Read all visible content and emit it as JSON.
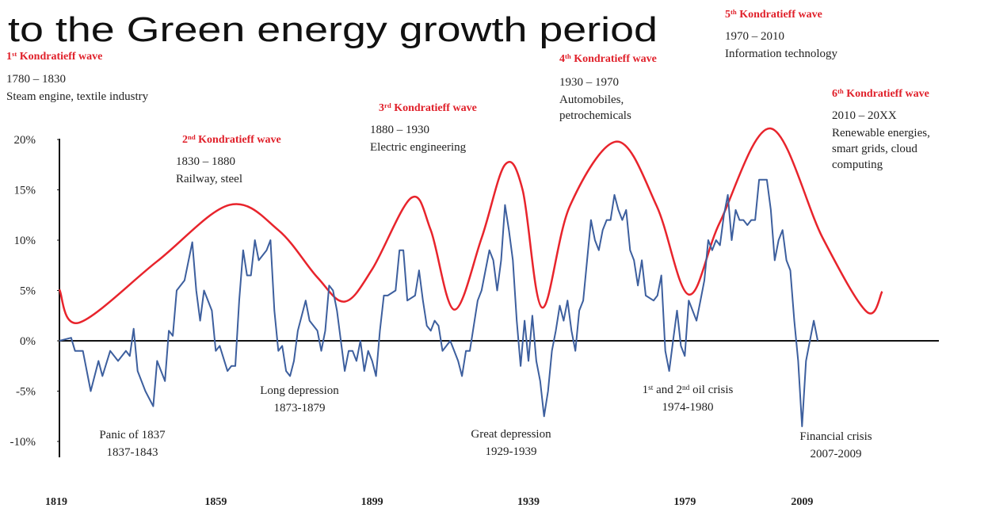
{
  "chart_data": {
    "type": "line",
    "title": "to the Green energy growth period",
    "xlim": [
      1819,
      2044
    ],
    "ylim": [
      -11,
      21.5
    ],
    "xticks": [
      1819,
      1859,
      1899,
      1939,
      1979,
      2009
    ],
    "yticks": [
      {
        "value": 20,
        "label": "20%"
      },
      {
        "value": 15,
        "label": "15%"
      },
      {
        "value": 10,
        "label": "10%"
      },
      {
        "value": 5,
        "label": "5%"
      },
      {
        "value": 0,
        "label": "0%"
      },
      {
        "value": -5,
        "label": "-5%"
      },
      {
        "value": -10,
        "label": "-10%"
      }
    ],
    "grid": false,
    "series": [
      {
        "color": "#e8242c",
        "smooth": true,
        "x": [
          1819,
          1824,
          1844,
          1862.5,
          1875,
          1885,
          1892,
          1899,
          1909,
          1914,
          1920,
          1927,
          1933,
          1937.5,
          1942.5,
          1949.6,
          1961.7,
          1971.8,
          1980,
          1988,
          2001,
          2014.3,
          2025.5,
          2029.5
        ],
        "values": [
          5.1,
          1.8,
          7.9,
          13.5,
          11,
          6.3,
          3.9,
          7.1,
          14.2,
          11,
          3.1,
          10.2,
          17.5,
          15,
          3.3,
          13.4,
          19.8,
          13.4,
          4.6,
          11.8,
          21.1,
          10.2,
          2.9,
          4.9
        ]
      },
      {
        "color": "#3d5f9e",
        "smooth": false,
        "x": [
          1819,
          1822,
          1823,
          1825,
          1827,
          1829,
          1830,
          1832,
          1834,
          1836,
          1837,
          1838,
          1839,
          1841,
          1843,
          1844,
          1846,
          1847,
          1848,
          1849,
          1851,
          1853,
          1854,
          1855,
          1856,
          1858,
          1859,
          1860,
          1862,
          1863,
          1864,
          1865,
          1866,
          1867,
          1868,
          1869,
          1870,
          1872,
          1873,
          1874,
          1875,
          1876,
          1877,
          1878,
          1879,
          1880,
          1882,
          1883,
          1885,
          1886,
          1887,
          1888,
          1889,
          1890,
          1891,
          1892,
          1893,
          1894,
          1895,
          1896,
          1897,
          1898,
          1899,
          1900,
          1901,
          1902,
          1903,
          1905,
          1906,
          1907,
          1908,
          1910,
          1911,
          1912,
          1913,
          1914,
          1915,
          1916,
          1917,
          1918,
          1919,
          1920,
          1921,
          1922,
          1923,
          1924,
          1926,
          1927,
          1929,
          1930,
          1931,
          1932,
          1933,
          1934,
          1935,
          1936,
          1937,
          1938,
          1939,
          1940,
          1941,
          1942,
          1943,
          1944,
          1945,
          1946,
          1947,
          1948,
          1949,
          1950,
          1951,
          1952,
          1953,
          1954,
          1955,
          1956,
          1957,
          1958,
          1959,
          1960,
          1961,
          1962,
          1963,
          1964,
          1965,
          1966,
          1967,
          1968,
          1969,
          1971,
          1972,
          1973,
          1974,
          1975,
          1976,
          1977,
          1978,
          1979,
          1980,
          1981,
          1982,
          1983,
          1984,
          1985,
          1986,
          1987,
          1988,
          1989,
          1990,
          1991,
          1992,
          1993,
          1994,
          1995,
          1996,
          1997,
          1998,
          1999,
          2000,
          2001,
          2002,
          2003,
          2004,
          2005,
          2006,
          2007,
          2008,
          2009,
          2010,
          2011,
          2012,
          2013
        ],
        "values": [
          0,
          0.3,
          -1,
          -1,
          -5,
          -2,
          -3.5,
          -1,
          -2,
          -1,
          -1.5,
          1.2,
          -3,
          -5,
          -6.5,
          -2,
          -4,
          1,
          0.5,
          5,
          6,
          9.8,
          5,
          2,
          5,
          3,
          -1,
          -0.5,
          -3,
          -2.5,
          -2.5,
          4,
          9,
          6.5,
          6.5,
          10,
          8,
          9,
          10,
          3,
          -1,
          -0.5,
          -3,
          -3.5,
          -2,
          1,
          4,
          2,
          1,
          -1,
          1,
          5.5,
          5,
          3,
          0,
          -3,
          -1,
          -1,
          -2,
          0,
          -3,
          -1,
          -2,
          -3.5,
          1,
          4.5,
          4.5,
          5,
          9,
          9,
          4,
          4.5,
          7,
          4,
          1.5,
          1,
          2,
          1.5,
          -1,
          -0.5,
          0,
          -1,
          -2,
          -3.5,
          -1,
          -1,
          4,
          5,
          9,
          8,
          5,
          8,
          13.5,
          11,
          8,
          2,
          -2.5,
          2,
          -2,
          2.5,
          -2,
          -4,
          -7.5,
          -5,
          -1,
          1,
          3.5,
          2,
          4,
          1,
          -1,
          3,
          4,
          8,
          12,
          10,
          9,
          11,
          12,
          12,
          14.5,
          13,
          12,
          13,
          9,
          8,
          5.5,
          8,
          4.5,
          4,
          4.5,
          6.5,
          -1,
          -3,
          0,
          3,
          -0.5,
          -1.5,
          4,
          3,
          2,
          4,
          6,
          10,
          9,
          10,
          9.5,
          12.5,
          14.5,
          10,
          13,
          12,
          12,
          11.5,
          12,
          12,
          16,
          16,
          16,
          13,
          8,
          10,
          11,
          8,
          7,
          2,
          -2,
          -8.5,
          -2,
          0,
          2,
          0
        ]
      }
    ],
    "waves": [
      {
        "heading": [
          {
            "text": "1"
          },
          {
            "text": "st",
            "sup": true
          },
          {
            "text": " Kondratieff wave"
          }
        ],
        "years": "1780 – 1830",
        "lines": [
          "Steam engine, textile industry"
        ]
      },
      {
        "heading": [
          {
            "text": "2"
          },
          {
            "text": "nd",
            "sup": true
          },
          {
            "text": " Kondratieff wave"
          }
        ],
        "years": "1830 – 1880",
        "lines": [
          "Railway, steel"
        ]
      },
      {
        "heading": [
          {
            "text": "3"
          },
          {
            "text": "rd",
            "sup": true
          },
          {
            "text": " Kondratieff wave"
          }
        ],
        "years": "1880 – 1930",
        "lines": [
          "Electric engineering"
        ]
      },
      {
        "heading": [
          {
            "text": "4"
          },
          {
            "text": "th",
            "sup": true
          },
          {
            "text": " Kondratieff wave"
          }
        ],
        "years": "1930 – 1970",
        "lines": [
          "Automobiles,",
          "petrochemicals"
        ]
      },
      {
        "heading": [
          {
            "text": "5"
          },
          {
            "text": "th",
            "sup": true
          },
          {
            "text": " Kondratieff wave"
          }
        ],
        "years": "1970 – 2010",
        "lines": [
          "Information technology"
        ]
      },
      {
        "heading": [
          {
            "text": "6"
          },
          {
            "text": "th",
            "sup": true
          },
          {
            "text": " Kondratieff wave"
          }
        ],
        "years": "2010 – 20XX",
        "lines": [
          "Renewable energies,",
          "smart grids, cloud",
          "computing"
        ]
      }
    ],
    "crises": [
      {
        "name": [
          {
            "text": "Panic of 1837"
          }
        ],
        "period": "1837-1843"
      },
      {
        "name": [
          {
            "text": "Long depression"
          }
        ],
        "period": "1873-1879"
      },
      {
        "name": [
          {
            "text": "Great depression"
          }
        ],
        "period": "1929-1939"
      },
      {
        "name": [
          {
            "text": "1"
          },
          {
            "text": "st",
            "sup": true
          },
          {
            "text": " and 2"
          },
          {
            "text": "nd",
            "sup": true
          },
          {
            "text": " oil crisis"
          }
        ],
        "period": "1974-1980"
      },
      {
        "name": [
          {
            "text": "Financial crisis"
          }
        ],
        "period": "2007-2009"
      }
    ]
  }
}
